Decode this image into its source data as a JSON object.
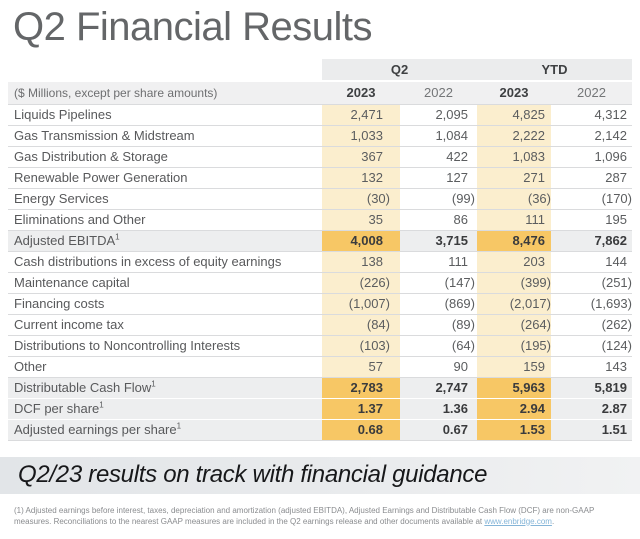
{
  "title": "Q2 Financial Results",
  "table": {
    "unit_label": "($ Millions, except per share amounts)",
    "col_groups": [
      {
        "label": "Q2"
      },
      {
        "label": "YTD"
      }
    ],
    "year_cols": [
      "2023",
      "2022",
      "2023",
      "2022"
    ],
    "rows": [
      {
        "label": "Liquids Pipelines",
        "sup": null,
        "values": [
          "2,471",
          "2,095",
          "4,825",
          "4,312"
        ],
        "emphasis": false
      },
      {
        "label": "Gas Transmission & Midstream",
        "sup": null,
        "values": [
          "1,033",
          "1,084",
          "2,222",
          "2,142"
        ],
        "emphasis": false
      },
      {
        "label": "Gas Distribution & Storage",
        "sup": null,
        "values": [
          "367",
          "422",
          "1,083",
          "1,096"
        ],
        "emphasis": false
      },
      {
        "label": "Renewable Power Generation",
        "sup": null,
        "values": [
          "132",
          "127",
          "271",
          "287"
        ],
        "emphasis": false
      },
      {
        "label": "Energy Services",
        "sup": null,
        "values": [
          "(30)",
          "(99)",
          "(36)",
          "(170)"
        ],
        "emphasis": false
      },
      {
        "label": "Eliminations and Other",
        "sup": null,
        "values": [
          "35",
          "86",
          "111",
          "195"
        ],
        "emphasis": false
      },
      {
        "label": "Adjusted EBITDA",
        "sup": "1",
        "values": [
          "4,008",
          "3,715",
          "8,476",
          "7,862"
        ],
        "emphasis": true
      },
      {
        "label": "Cash distributions in excess of equity earnings",
        "sup": null,
        "values": [
          "138",
          "111",
          "203",
          "144"
        ],
        "emphasis": false
      },
      {
        "label": "Maintenance capital",
        "sup": null,
        "values": [
          "(226)",
          "(147)",
          "(399)",
          "(251)"
        ],
        "emphasis": false
      },
      {
        "label": "Financing costs",
        "sup": null,
        "values": [
          "(1,007)",
          "(869)",
          "(2,017)",
          "(1,693)"
        ],
        "emphasis": false
      },
      {
        "label": "Current income tax",
        "sup": null,
        "values": [
          "(84)",
          "(89)",
          "(264)",
          "(262)"
        ],
        "emphasis": false
      },
      {
        "label": "Distributions to Noncontrolling Interests",
        "sup": null,
        "values": [
          "(103)",
          "(64)",
          "(195)",
          "(124)"
        ],
        "emphasis": false
      },
      {
        "label": "Other",
        "sup": null,
        "values": [
          "57",
          "90",
          "159",
          "143"
        ],
        "emphasis": false
      },
      {
        "label": "Distributable Cash Flow",
        "sup": "1",
        "values": [
          "2,783",
          "2,747",
          "5,963",
          "5,819"
        ],
        "emphasis": true
      },
      {
        "label": "DCF per share",
        "sup": "1",
        "values": [
          "1.37",
          "1.36",
          "2.94",
          "2.87"
        ],
        "emphasis": true
      },
      {
        "label": "Adjusted earnings per share",
        "sup": "1",
        "values": [
          "0.68",
          "0.67",
          "1.53",
          "1.51"
        ],
        "emphasis": true
      }
    ]
  },
  "banner": {
    "text": "Q2/23 results on track with financial guidance"
  },
  "footnote": {
    "text_before_link": "(1) Adjusted earnings before interest, taxes, depreciation and amortization (adjusted EBITDA), Adjusted Earnings and Distributable Cash Flow (DCF) are non-GAAP measures. Reconciliations to the nearest GAAP measures are included in the Q2 earnings release and other documents available at ",
    "link_text": "www.enbridge.com",
    "text_after_link": "."
  },
  "colors": {
    "highlight_2023": "#FBEECE",
    "highlight_total": "#F7C765",
    "header_band": "#EBECED",
    "subheader_band": "#F0F0F1",
    "total_row_bg": "#EDEEEF",
    "row_border": "#DADBDD",
    "title_text": "#646668",
    "link": "#85B5D8"
  }
}
